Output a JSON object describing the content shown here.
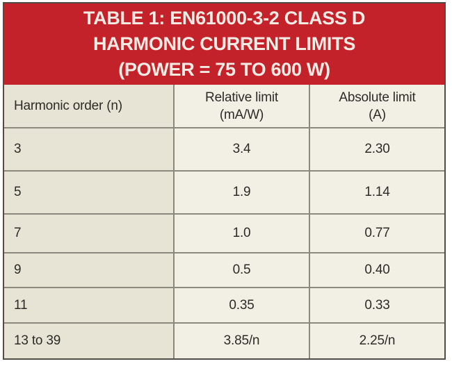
{
  "title": {
    "line1": "TABLE 1: EN61000-3-2 CLASS D",
    "line2": "HARMONIC CURRENT LIMITS",
    "line3": "(POWER = 75 TO 600 W)"
  },
  "table": {
    "header": {
      "col1": "Harmonic order (n)",
      "col2_line1": "Relative limit",
      "col2_line2": "(mA/W)",
      "col3_line1": "Absolute limit",
      "col3_line2": "(A)"
    },
    "rows": [
      {
        "n": "3",
        "relative": "3.4",
        "absolute": "2.30"
      },
      {
        "n": "5",
        "relative": "1.9",
        "absolute": "1.14"
      },
      {
        "n": "7",
        "relative": "1.0",
        "absolute": "0.77"
      },
      {
        "n": "9",
        "relative": "0.5",
        "absolute": "0.40"
      },
      {
        "n": "11",
        "relative": "0.35",
        "absolute": "0.33"
      },
      {
        "n": "13 to 39",
        "relative": "3.85/n",
        "absolute": "2.25/n"
      }
    ]
  },
  "colors": {
    "title_band_bg": "#c4222a",
    "title_text": "#f3eae3",
    "column1_bg": "#e7e4d5",
    "value_columns_bg": "#f2efe5",
    "grid_line": "#8b897e",
    "outer_border": "#4f4d45",
    "cell_text": "#2d2b27",
    "page_bg": "#ffffff"
  }
}
